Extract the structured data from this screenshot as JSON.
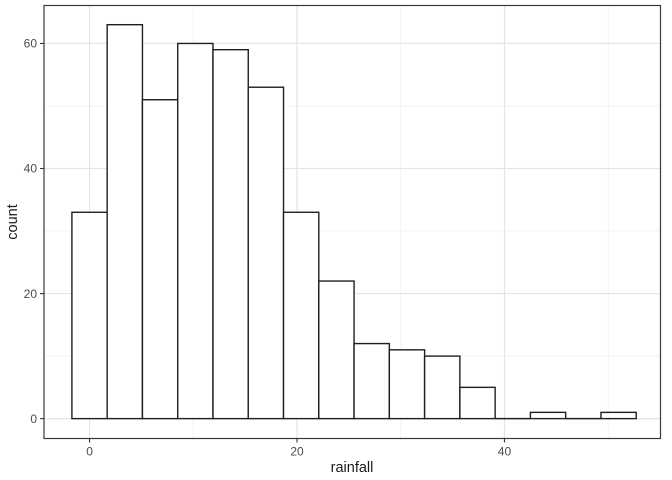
{
  "chart_data": {
    "type": "bar",
    "subtype": "histogram",
    "title": "",
    "xlabel": "rainfall",
    "ylabel": "count",
    "bin_start": -1.7,
    "bin_width": 3.4,
    "bin_centers": [
      0,
      3.4,
      6.8,
      10.2,
      13.6,
      17,
      20.4,
      23.8,
      27.2,
      30.6,
      34,
      37.4,
      40.8,
      44.2,
      47.6,
      51
    ],
    "counts": [
      33,
      63,
      51,
      60,
      59,
      53,
      33,
      22,
      12,
      11,
      10,
      5,
      0,
      1,
      0,
      1
    ],
    "x_major_ticks": [
      0,
      20,
      40
    ],
    "x_minor_ticks": [
      10,
      30,
      50
    ],
    "y_major_ticks": [
      0,
      20,
      40,
      60
    ],
    "y_minor_ticks": [
      10,
      30,
      50
    ],
    "xlim": [
      -4.39,
      55.04
    ],
    "ylim": [
      -3.18,
      66.07
    ],
    "grid": "major+minor",
    "legend_position": "none",
    "colors": {
      "figure_background": "#ffffff",
      "panel_background": "#ffffff",
      "bar_fill": "#ffffff",
      "bar_stroke": "#1f1f1f",
      "grid_major": "#e4e4e4",
      "grid_minor": "#f1f1f1",
      "panel_border": "#3a3a3a",
      "tick_mark": "#333333",
      "tick_label": "#4d4d4d",
      "axis_title": "#1a1a1a"
    }
  }
}
